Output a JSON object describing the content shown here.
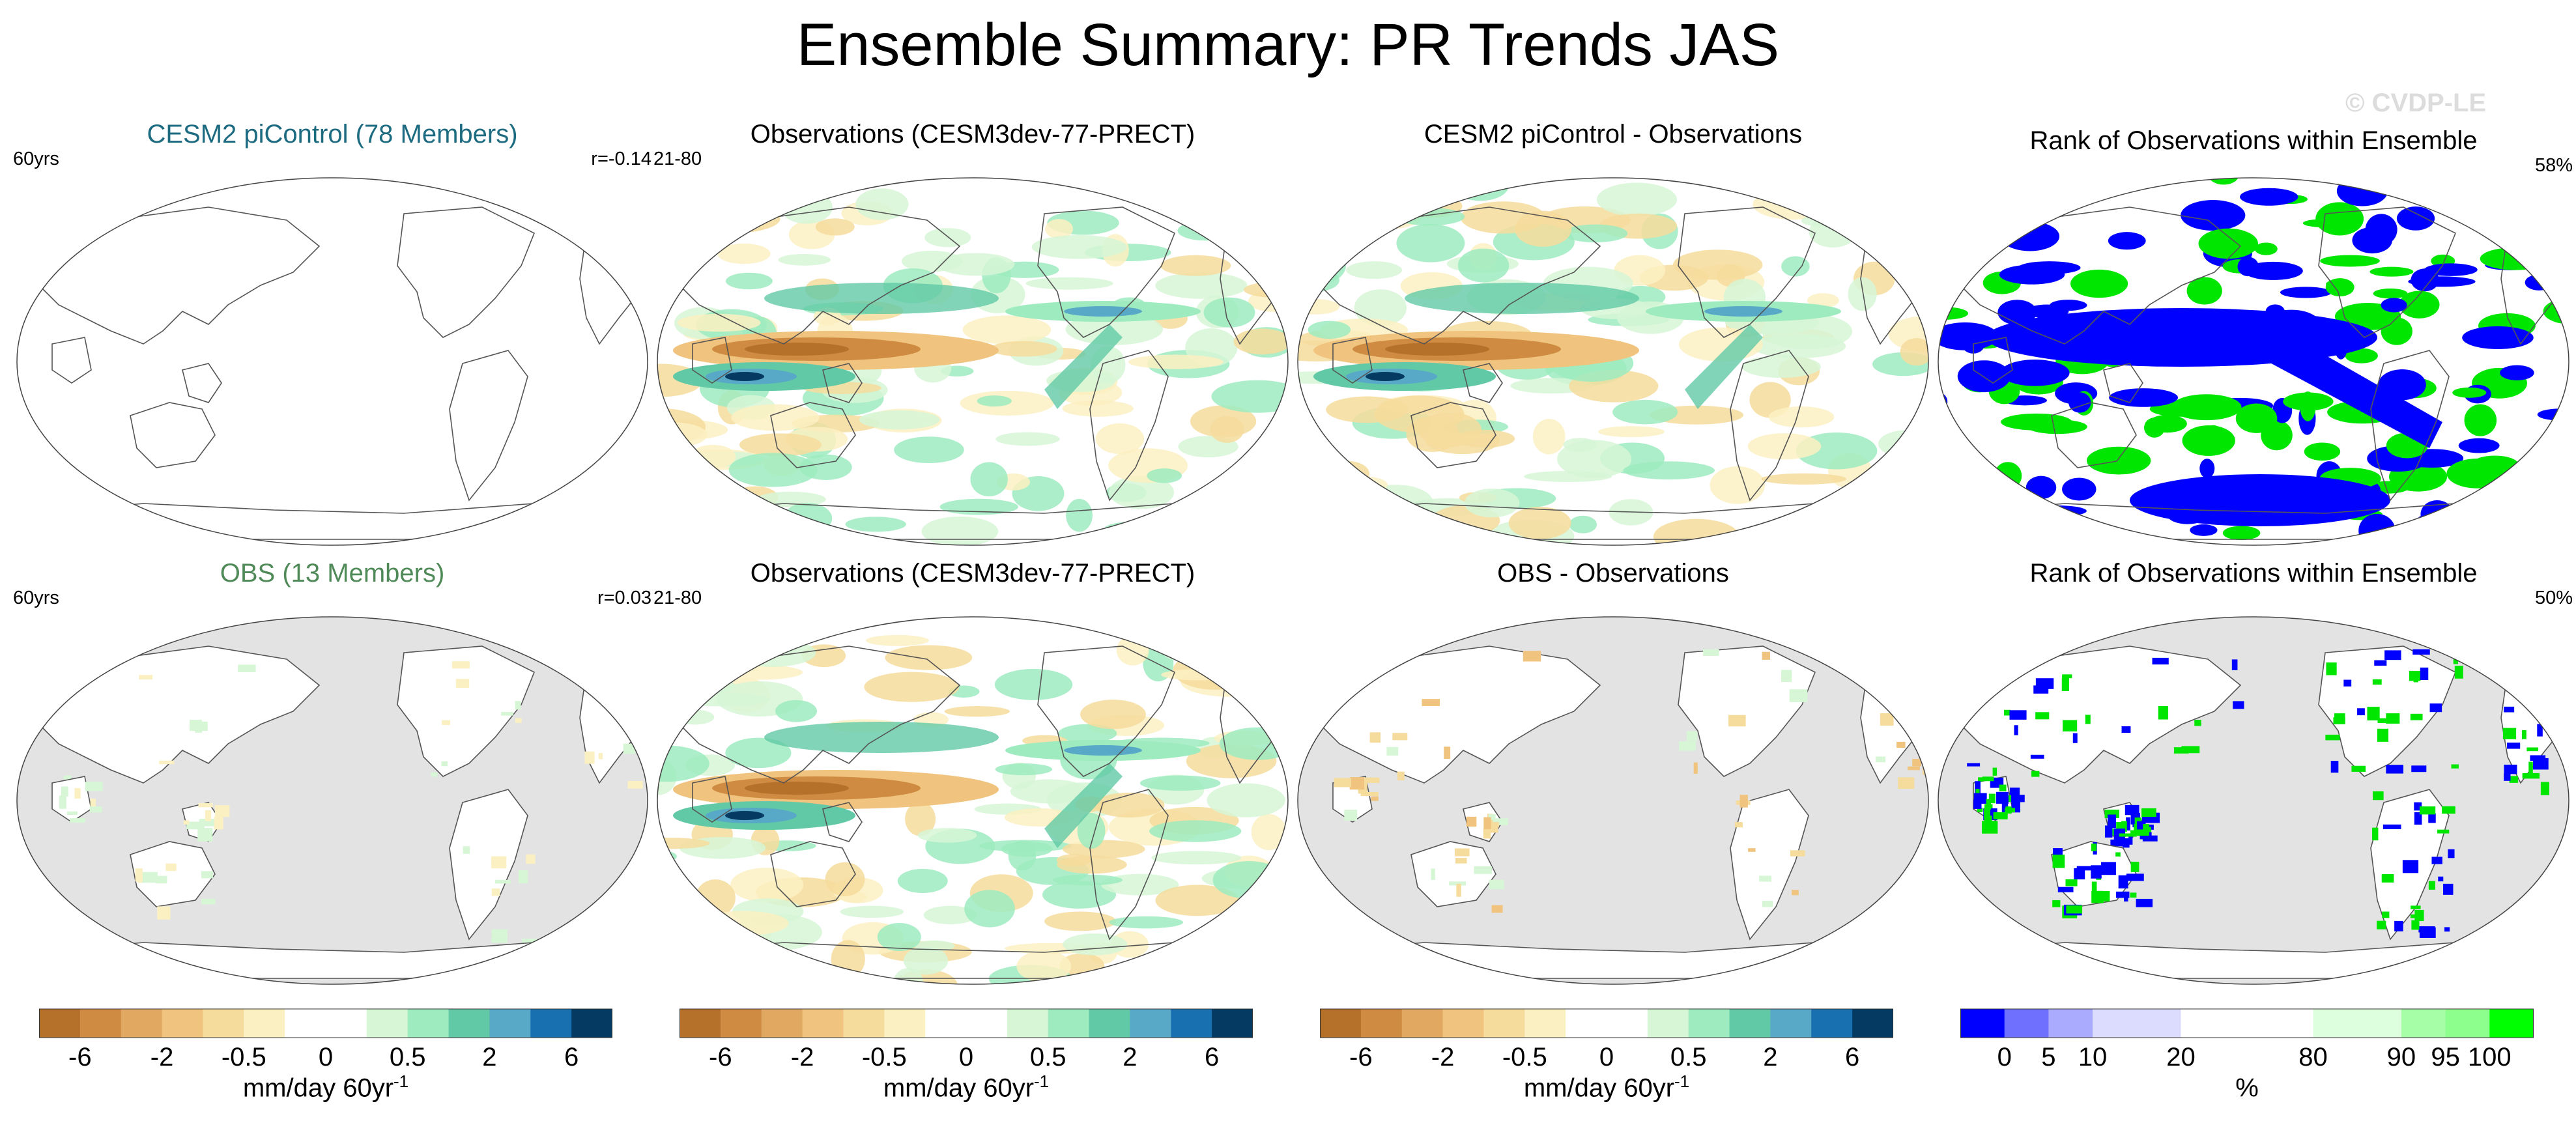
{
  "title": "Ensemble Summary: PR Trends JAS",
  "watermark": "© CVDP-LE",
  "colors": {
    "model_title": "#1d6b80",
    "obs_title": "#4f8a58",
    "land_gray": "#e3e3e3",
    "rank_blue": "#0000ff",
    "rank_green": "#00e600",
    "trend_palette": [
      "#b5702a",
      "#cf8b42",
      "#e0a860",
      "#f0c47e",
      "#f6dc9c",
      "#fbf0c2",
      "#ffffff",
      "#ffffff",
      "#d6f6d6",
      "#9eebbf",
      "#62c9a6",
      "#58a9c7",
      "#1870b0",
      "#053b63"
    ],
    "rank_palette": [
      "#0000ff",
      "#7070ff",
      "#aaaaff",
      "#dcdcff",
      "#dcdcff",
      "#ffffff",
      "#ffffff",
      "#ffffff",
      "#ddffdd",
      "#ddffdd",
      "#a6ffa6",
      "#8cff8c",
      "#00ff00"
    ]
  },
  "rows": [
    {
      "panels": [
        {
          "title": "CESM2 piControl (78 Members)",
          "left": "60yrs",
          "right": "r=-0.14",
          "style": "model",
          "map": "blank"
        },
        {
          "title": "Observations (CESM3dev-77-PRECT)",
          "left": "21-80",
          "right": "",
          "style": "plain",
          "map": "trend"
        },
        {
          "title": "CESM2 piControl - Observations",
          "left": "",
          "right": "",
          "style": "plain",
          "map": "trend"
        },
        {
          "title": "Rank of Observations within Ensemble",
          "left": "",
          "right": "58%",
          "style": "plain",
          "map": "rank-full"
        }
      ]
    },
    {
      "panels": [
        {
          "title": "OBS (13 Members)",
          "left": "60yrs",
          "right": "r=0.03",
          "style": "obs",
          "map": "land-sparse"
        },
        {
          "title": "Observations (CESM3dev-77-PRECT)",
          "left": "21-80",
          "right": "",
          "style": "plain",
          "map": "trend"
        },
        {
          "title": "OBS - Observations",
          "left": "",
          "right": "",
          "style": "plain",
          "map": "land-diff"
        },
        {
          "title": "Rank of Observations within Ensemble",
          "left": "",
          "right": "50%",
          "style": "plain",
          "map": "rank-land"
        }
      ]
    }
  ],
  "colorbars": [
    {
      "ticks": [
        "-6",
        "-2",
        "-0.5",
        "0",
        "0.5",
        "2",
        "6"
      ],
      "label": "mm/day 60yr",
      "label_sup": "-1",
      "palette": "trend"
    },
    {
      "ticks": [
        "-6",
        "-2",
        "-0.5",
        "0",
        "0.5",
        "2",
        "6"
      ],
      "label": "mm/day 60yr",
      "label_sup": "-1",
      "palette": "trend"
    },
    {
      "ticks": [
        "-6",
        "-2",
        "-0.5",
        "0",
        "0.5",
        "2",
        "6"
      ],
      "label": "mm/day 60yr",
      "label_sup": "-1",
      "palette": "trend"
    },
    {
      "ticks": [
        "0",
        "5",
        "10",
        "20",
        "80",
        "90",
        "95",
        "100"
      ],
      "label": "%",
      "label_sup": "",
      "palette": "rank"
    }
  ],
  "chart_data": {
    "type": "heatmap",
    "title": "Ensemble Summary: PR Trends JAS",
    "units": "mm/day 60yr-1",
    "trend_levels": [
      -6,
      -4,
      -2,
      -1,
      -0.5,
      -0.2,
      0,
      0.2,
      0.5,
      1,
      2,
      4,
      6
    ],
    "trend_tick_labels": [
      "-6",
      "-2",
      "-0.5",
      "0",
      "0.5",
      "2",
      "6"
    ],
    "rank_levels_percent": [
      0,
      5,
      10,
      20,
      80,
      90,
      95,
      100
    ],
    "panels": [
      {
        "row": 1,
        "col": 1,
        "title": "CESM2 piControl (78 Members)",
        "period": "60yrs",
        "pattern_correlation": -0.14
      },
      {
        "row": 1,
        "col": 2,
        "title": "Observations (CESM3dev-77-PRECT)",
        "period": "21-80"
      },
      {
        "row": 1,
        "col": 3,
        "title": "CESM2 piControl - Observations"
      },
      {
        "row": 1,
        "col": 4,
        "title": "Rank of Observations within Ensemble",
        "percent_area": 58
      },
      {
        "row": 2,
        "col": 1,
        "title": "OBS (13 Members)",
        "period": "60yrs",
        "pattern_correlation": 0.03
      },
      {
        "row": 2,
        "col": 2,
        "title": "Observations (CESM3dev-77-PRECT)",
        "period": "21-80"
      },
      {
        "row": 2,
        "col": 3,
        "title": "OBS - Observations"
      },
      {
        "row": 2,
        "col": 4,
        "title": "Rank of Observations within Ensemble",
        "percent_area": 50
      }
    ]
  }
}
